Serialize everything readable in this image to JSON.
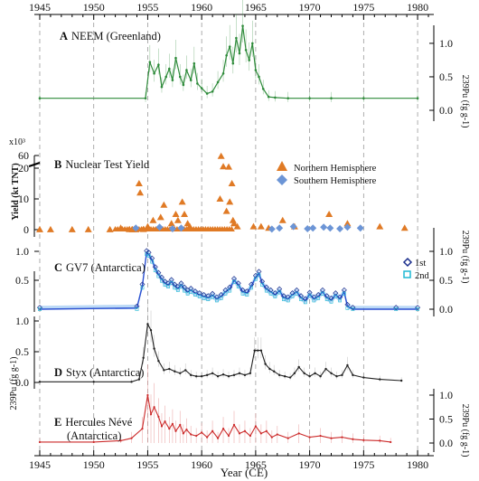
{
  "chart_data": {
    "type": "line",
    "xlabel": "Year (CE)",
    "xlim": [
      1944.5,
      1981.5
    ],
    "x_ticks": [
      "1945",
      "1950",
      "1955",
      "1960",
      "1965",
      "1970",
      "1975",
      "1980"
    ],
    "top_x_ticks": [
      "1945",
      "1950",
      "1955",
      "1960",
      "1965",
      "1970",
      "1975",
      "1980"
    ],
    "grid": "vertical dashed every 5 years",
    "panels": [
      {
        "letter": "A",
        "title": "NEEM (Greenland)",
        "ylabel": "239Pu (fg g-1)",
        "axis_side": "right",
        "ylim": [
          0,
          1.35
        ],
        "yticks": [
          "0.0",
          "0.5",
          "1.0"
        ],
        "color": "#2e8b3a",
        "series": [
          {
            "x": [
              1945,
              1954.8,
              1955.2,
              1955.6,
              1956.0,
              1956.3,
              1956.7,
              1957.0,
              1957.3,
              1957.6,
              1958.0,
              1958.3,
              1958.6,
              1959.0,
              1959.3,
              1959.6,
              1960.0,
              1960.5,
              1961.0,
              1961.5,
              1962.0,
              1962.3,
              1962.6,
              1962.9,
              1963.2,
              1963.5,
              1963.8,
              1964.1,
              1964.4,
              1964.7,
              1965.0,
              1965.3,
              1965.7,
              1966.2,
              1966.8,
              1968.0,
              1970.0,
              1972.0,
              1975.0,
              1980.0
            ],
            "y": [
              0.18,
              0.18,
              0.72,
              0.55,
              0.68,
              0.35,
              0.5,
              0.62,
              0.45,
              0.78,
              0.5,
              0.38,
              0.6,
              0.45,
              0.7,
              0.4,
              0.33,
              0.25,
              0.28,
              0.42,
              0.55,
              0.82,
              0.95,
              0.7,
              1.08,
              0.85,
              1.26,
              0.9,
              0.75,
              1.0,
              0.6,
              0.5,
              0.32,
              0.2,
              0.19,
              0.18,
              0.18,
              0.18,
              0.18,
              0.18
            ]
          }
        ]
      },
      {
        "letter": "B",
        "title": "Nuclear Test Yield",
        "ylabel": "Yield (kt TNT)",
        "axis_side": "left",
        "y_multiplier": "x10³",
        "yticks": [
          "0",
          "10",
          "20",
          "60"
        ],
        "legend": [
          "Northern Hemisphere",
          "Southern Hemisphere"
        ],
        "colors": {
          "north": "#e07a25",
          "south": "#6c95d6"
        },
        "series": [
          {
            "name": "Northern Hemisphere",
            "x": [
              1945,
              1946,
              1948,
              1949.5,
              1951.5,
              1952.5,
              1953.3,
              1953.6,
              1953.9,
              1954.2,
              1954.3,
              1954.6,
              1955.0,
              1955.5,
              1956.2,
              1956.5,
              1957.2,
              1957.6,
              1957.8,
              1958.2,
              1958.4,
              1958.7,
              1958.9,
              1961.7,
              1961.8,
              1962.0,
              1962.3,
              1962.5,
              1962.6,
              1962.8,
              1962.9,
              1963.0,
              1963.3,
              1964.8,
              1965.5,
              1966.2,
              1967.5,
              1968.6,
              1971.8,
              1973.5,
              1976.5,
              1978.8
            ],
            "y": [
              0.02,
              0.02,
              0.04,
              0.02,
              0.05,
              0.5,
              0.08,
              0.02,
              0.03,
              15,
              12,
              0.1,
              1,
              3,
              4,
              8,
              2,
              5,
              3,
              9,
              5,
              2,
              1,
              10,
              58,
              25,
              6,
              24,
              9,
              15,
              3,
              2,
              1,
              1,
              1,
              0.5,
              3,
              1,
              5,
              2,
              1,
              0.5
            ]
          },
          {
            "name": "Southern Hemisphere",
            "x": [
              1953.9,
              1956.1,
              1957.3,
              1958.1,
              1966.5,
              1967.2,
              1968.5,
              1969.8,
              1970.3,
              1971.3,
              1971.9,
              1972.8,
              1973.5,
              1974.7
            ],
            "y": [
              0.5,
              0.8,
              0.3,
              0.5,
              0.2,
              0.5,
              1,
              0.3,
              0.5,
              0.8,
              0.5,
              0.3,
              0.8,
              0.5
            ]
          }
        ]
      },
      {
        "letter": "C",
        "title": "GV7 (Antarctica)",
        "ylabel": "239Pu (fg g-1)",
        "axis_side": "both",
        "ylim_right": [
          0,
          1.25
        ],
        "yticks_right": [
          "0.0",
          "0.5",
          "1.0"
        ],
        "ylim_left": [
          0,
          1.25
        ],
        "yticks_left": [
          "0.5",
          "1.0"
        ],
        "legend": [
          "1st",
          "2nd"
        ],
        "colors": {
          "first": "#1a2d8c",
          "second": "#1fb8d3",
          "line": "#2b4fd1"
        },
        "series": [
          {
            "name": "1st",
            "x": [
              1945,
              1954.0,
              1954.5,
              1954.9,
              1955.1,
              1955.4,
              1955.7,
              1956.0,
              1956.3,
              1956.6,
              1956.9,
              1957.2,
              1957.5,
              1957.8,
              1958.1,
              1958.4,
              1958.7,
              1959.0,
              1959.4,
              1959.8,
              1960.2,
              1960.6,
              1961.0,
              1961.4,
              1961.8,
              1962.2,
              1962.6,
              1963.0,
              1963.4,
              1963.8,
              1964.2,
              1964.6,
              1965.0,
              1965.3,
              1965.6,
              1966.0,
              1966.4,
              1966.8,
              1967.2,
              1967.6,
              1968.0,
              1968.4,
              1968.8,
              1969.2,
              1969.6,
              1970.0,
              1970.4,
              1970.8,
              1971.2,
              1971.6,
              1972.0,
              1972.4,
              1972.8,
              1973.2,
              1973.5,
              1974,
              1978,
              1980
            ],
            "y": [
              0.0,
              0.02,
              0.4,
              0.98,
              0.95,
              0.85,
              0.7,
              0.6,
              0.52,
              0.45,
              0.42,
              0.48,
              0.4,
              0.36,
              0.42,
              0.35,
              0.3,
              0.33,
              0.28,
              0.25,
              0.22,
              0.2,
              0.24,
              0.18,
              0.22,
              0.3,
              0.35,
              0.5,
              0.42,
              0.3,
              0.28,
              0.4,
              0.55,
              0.62,
              0.45,
              0.35,
              0.3,
              0.25,
              0.32,
              0.2,
              0.18,
              0.25,
              0.3,
              0.2,
              0.15,
              0.26,
              0.18,
              0.22,
              0.3,
              0.2,
              0.16,
              0.25,
              0.18,
              0.3,
              0.05,
              0.0,
              0.0,
              0.0
            ]
          }
        ]
      },
      {
        "letter": "D",
        "title": "Styx (Antarctica)",
        "ylabel": "239Pu (fg g-1)",
        "axis_side": "left",
        "ylim": [
          0,
          1.05
        ],
        "yticks": [
          "0.0",
          "0.5",
          "1.0"
        ],
        "color": "#222222",
        "series": [
          {
            "x": [
              1945,
              1950,
              1953.5,
              1954.2,
              1954.6,
              1955.0,
              1955.3,
              1955.6,
              1956.0,
              1956.5,
              1957.0,
              1957.5,
              1958.0,
              1958.5,
              1959.0,
              1959.5,
              1960.0,
              1960.5,
              1961.0,
              1961.5,
              1962.0,
              1962.5,
              1963.0,
              1963.5,
              1964.0,
              1964.5,
              1964.9,
              1965.2,
              1965.5,
              1965.9,
              1966.3,
              1966.7,
              1967.2,
              1967.7,
              1968.2,
              1968.6,
              1969.0,
              1969.5,
              1970.0,
              1970.5,
              1971.0,
              1971.5,
              1972.0,
              1972.5,
              1973.0,
              1973.5,
              1974.0,
              1975.0,
              1976.5,
              1978.5
            ],
            "y": [
              0.01,
              0.01,
              0.01,
              0.05,
              0.4,
              0.95,
              0.85,
              0.55,
              0.35,
              0.2,
              0.22,
              0.18,
              0.15,
              0.2,
              0.12,
              0.1,
              0.1,
              0.12,
              0.15,
              0.1,
              0.13,
              0.1,
              0.12,
              0.15,
              0.12,
              0.15,
              0.52,
              0.52,
              0.52,
              0.3,
              0.22,
              0.18,
              0.12,
              0.1,
              0.08,
              0.15,
              0.25,
              0.15,
              0.1,
              0.15,
              0.1,
              0.22,
              0.15,
              0.1,
              0.12,
              0.28,
              0.12,
              0.08,
              0.05,
              0.03
            ]
          }
        ]
      },
      {
        "letter": "E",
        "title": "Hercules Névé",
        "subtitle": "(Antarctica)",
        "ylabel": "239Pu (fg g-1)",
        "axis_side": "right",
        "ylim": [
          0,
          1.1
        ],
        "yticks": [
          "0.0",
          "0.5",
          "1.0"
        ],
        "color": "#cc2a2a",
        "series": [
          {
            "x": [
              1945,
              1950,
              1952.5,
              1953.5,
              1954.5,
              1955.0,
              1955.3,
              1955.6,
              1956.0,
              1956.3,
              1956.6,
              1957.0,
              1957.3,
              1957.6,
              1958.0,
              1958.3,
              1958.6,
              1959.0,
              1959.5,
              1960.0,
              1960.5,
              1961.0,
              1961.5,
              1962.0,
              1962.5,
              1963.0,
              1963.5,
              1964.0,
              1964.5,
              1965.0,
              1965.5,
              1966.0,
              1966.5,
              1967.0,
              1968.0,
              1969.0,
              1970.0,
              1971.0,
              1972.0,
              1973.0,
              1974.0,
              1975.0,
              1976.5,
              1977.5
            ],
            "y": [
              0.02,
              0.02,
              0.05,
              0.1,
              0.3,
              1.0,
              0.6,
              0.75,
              0.55,
              0.35,
              0.45,
              0.3,
              0.4,
              0.25,
              0.38,
              0.2,
              0.28,
              0.18,
              0.15,
              0.22,
              0.12,
              0.25,
              0.1,
              0.3,
              0.15,
              0.38,
              0.2,
              0.25,
              0.15,
              0.35,
              0.2,
              0.25,
              0.12,
              0.18,
              0.1,
              0.2,
              0.12,
              0.15,
              0.1,
              0.12,
              0.08,
              0.06,
              0.05,
              0.02
            ]
          }
        ]
      }
    ]
  }
}
